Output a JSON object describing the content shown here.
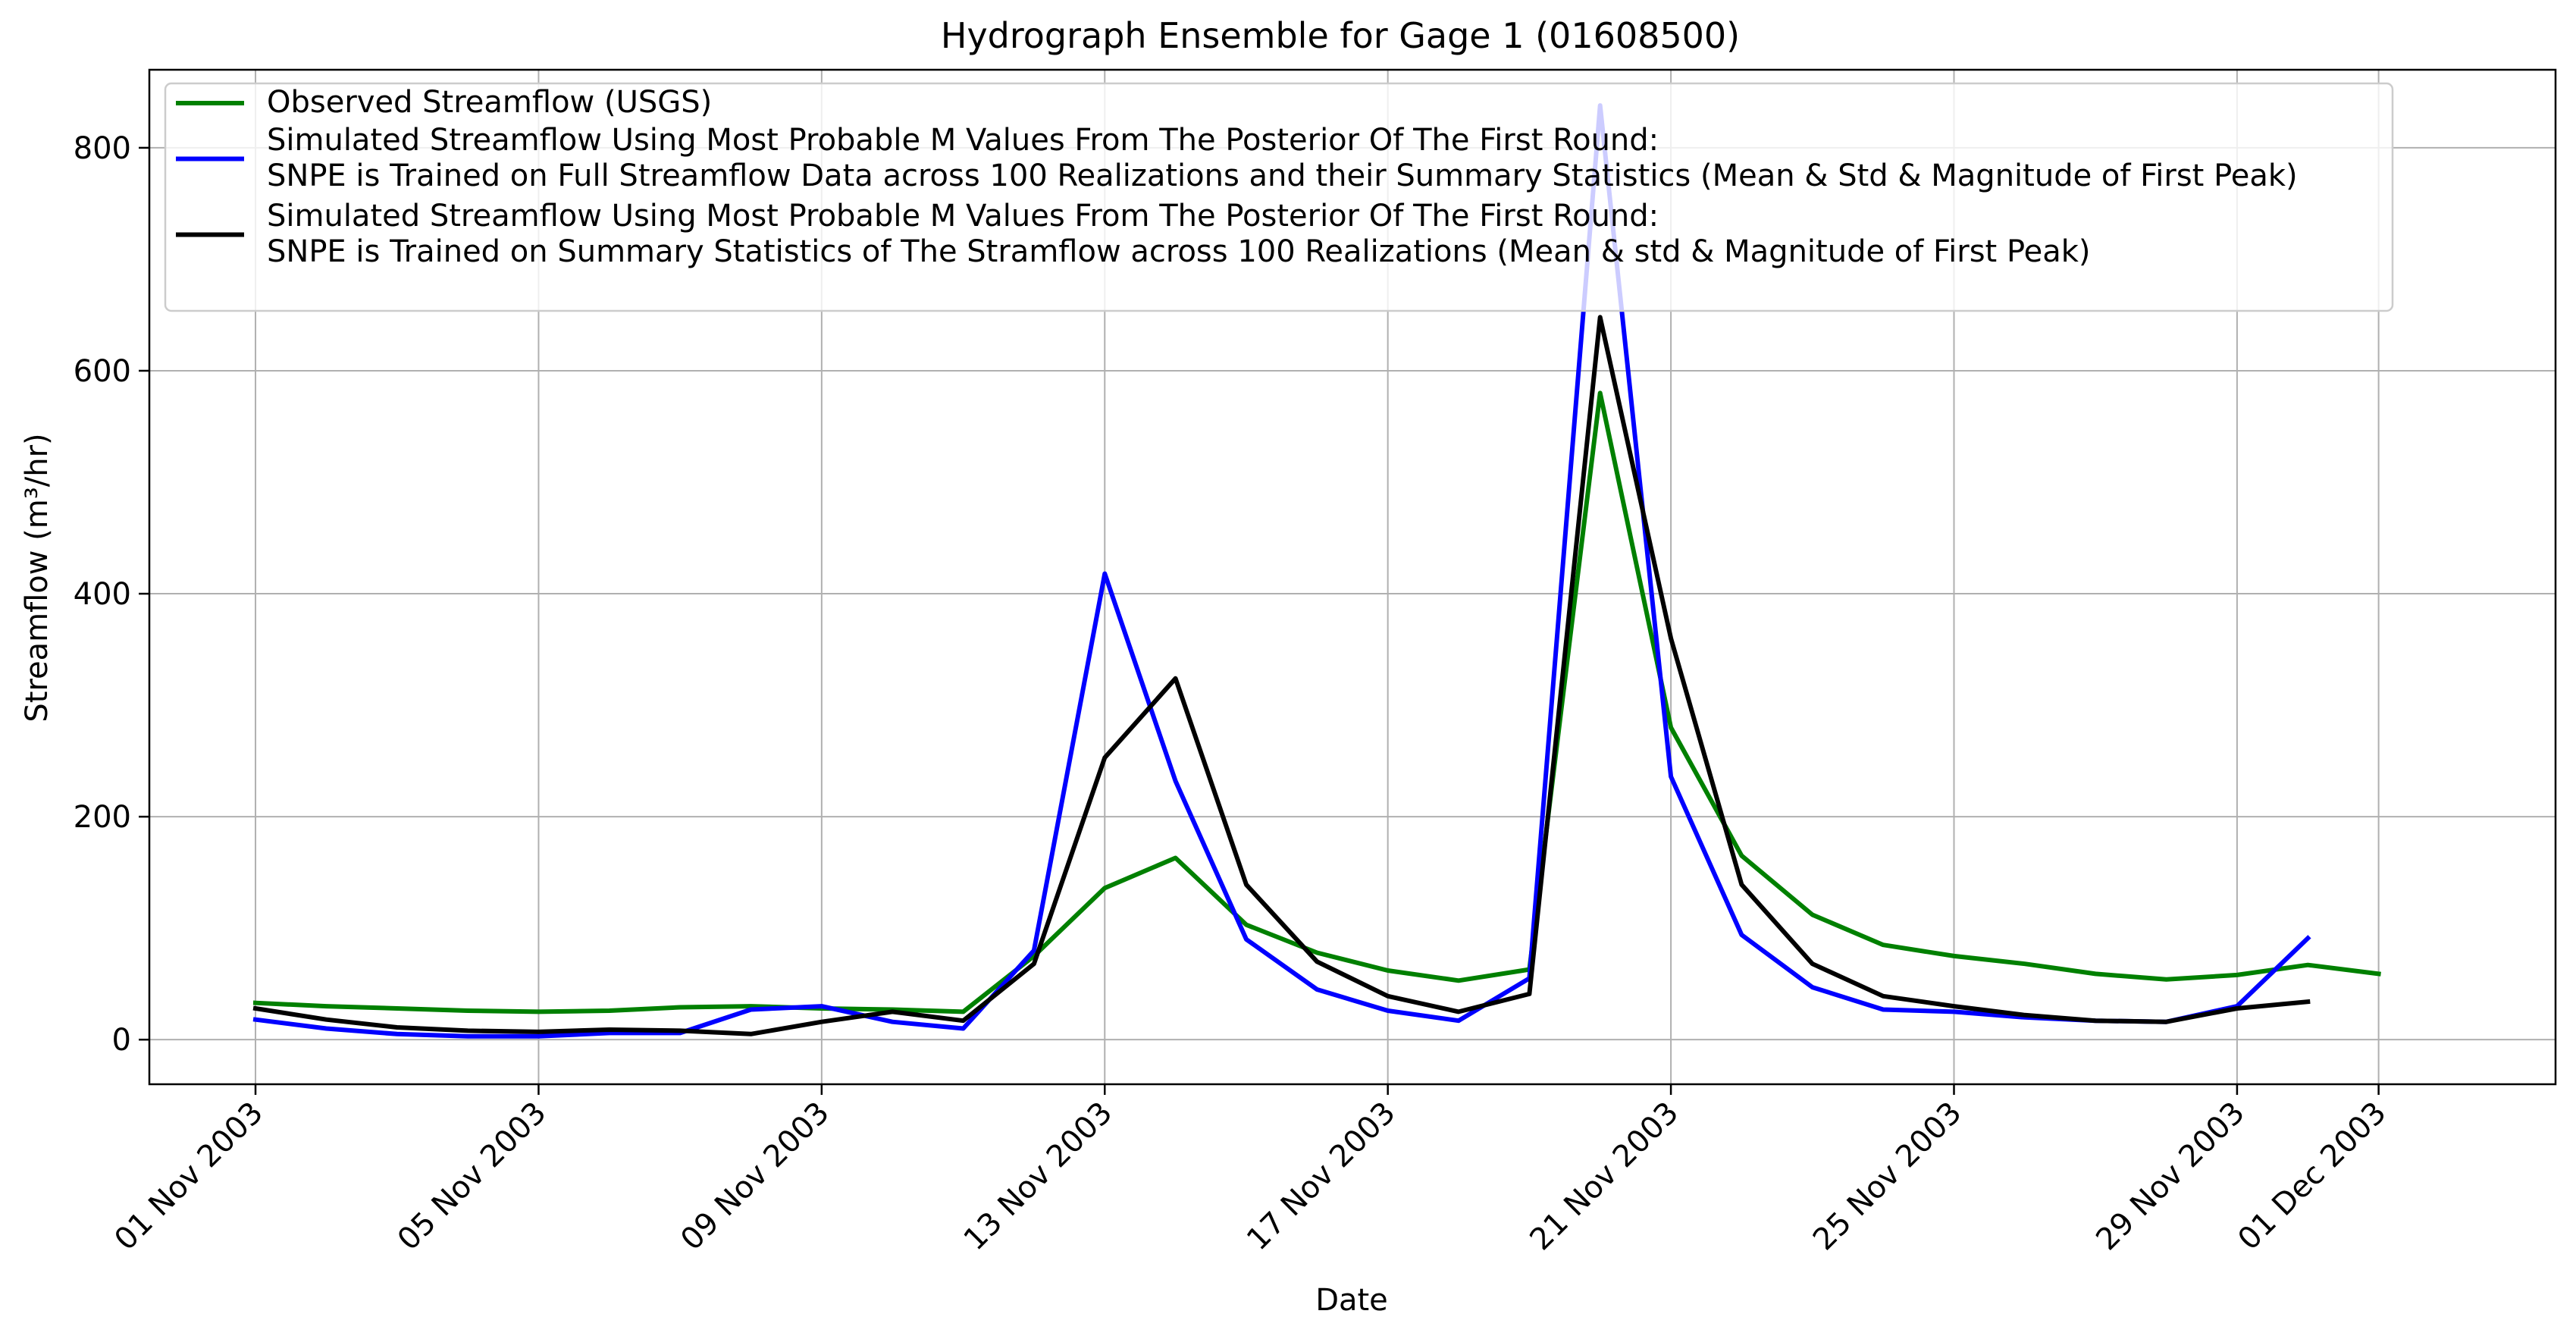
{
  "chart_data": {
    "type": "line",
    "title": "Hydrograph Ensemble for Gage 1 (01608500)",
    "xlabel": "Date",
    "ylabel": "Streamflow (m³/hr)",
    "x_range": [
      "2003-10-30T12:00",
      "2003-12-03T12:00"
    ],
    "ylim": [
      -40,
      870
    ],
    "grid": true,
    "legend_position": "top-left",
    "x_ticks": [
      {
        "date": "2003-11-01",
        "label": "01 Nov 2003"
      },
      {
        "date": "2003-11-05",
        "label": "05 Nov 2003"
      },
      {
        "date": "2003-11-09",
        "label": "09 Nov 2003"
      },
      {
        "date": "2003-11-13",
        "label": "13 Nov 2003"
      },
      {
        "date": "2003-11-17",
        "label": "17 Nov 2003"
      },
      {
        "date": "2003-11-21",
        "label": "21 Nov 2003"
      },
      {
        "date": "2003-11-25",
        "label": "25 Nov 2003"
      },
      {
        "date": "2003-11-29",
        "label": "29 Nov 2003"
      },
      {
        "date": "2003-12-01",
        "label": "01 Dec 2003"
      }
    ],
    "y_ticks": [
      0,
      200,
      400,
      600,
      800
    ],
    "series": [
      {
        "name": "Observed Streamflow (USGS)",
        "color": "#008000",
        "x": [
          "2003-11-01",
          "2003-11-02",
          "2003-11-03",
          "2003-11-04",
          "2003-11-05",
          "2003-11-06",
          "2003-11-07",
          "2003-11-08",
          "2003-11-09",
          "2003-11-10",
          "2003-11-11",
          "2003-11-12",
          "2003-11-13",
          "2003-11-14",
          "2003-11-15",
          "2003-11-16",
          "2003-11-17",
          "2003-11-18",
          "2003-11-19",
          "2003-11-20",
          "2003-11-21",
          "2003-11-22",
          "2003-11-23",
          "2003-11-24",
          "2003-11-25",
          "2003-11-26",
          "2003-11-27",
          "2003-11-28",
          "2003-11-29",
          "2003-11-30",
          "2003-12-01"
        ],
        "y": [
          33,
          30,
          28,
          26,
          25,
          26,
          29,
          30,
          28,
          27,
          25,
          75,
          136,
          163,
          103,
          78,
          62,
          53,
          63,
          580,
          280,
          165,
          112,
          85,
          75,
          68,
          59,
          54,
          58,
          67,
          59
        ]
      },
      {
        "name": "Simulated Streamflow Using Most Probable M Values From The Posterior Of The First Round:\nSNPE is Trained on Full Streamflow Data across 100 Realizations and their Summary Statistics (Mean & Std & Magnitude of First Peak)",
        "color": "#0000ff",
        "x": [
          "2003-11-01",
          "2003-11-02",
          "2003-11-03",
          "2003-11-04",
          "2003-11-05",
          "2003-11-06",
          "2003-11-07",
          "2003-11-08",
          "2003-11-09",
          "2003-11-10",
          "2003-11-11",
          "2003-11-12",
          "2003-11-13",
          "2003-11-14",
          "2003-11-15",
          "2003-11-16",
          "2003-11-17",
          "2003-11-18",
          "2003-11-19",
          "2003-11-20",
          "2003-11-21",
          "2003-11-22",
          "2003-11-23",
          "2003-11-24",
          "2003-11-25",
          "2003-11-26",
          "2003-11-27",
          "2003-11-28",
          "2003-11-29",
          "2003-11-30"
        ],
        "y": [
          18,
          10,
          5,
          3,
          3,
          6,
          6,
          27,
          30,
          16,
          10,
          80,
          418,
          232,
          90,
          45,
          26,
          17,
          55,
          838,
          236,
          94,
          47,
          27,
          25,
          20,
          17,
          16,
          30,
          91
        ]
      },
      {
        "name": "Simulated Streamflow Using Most Probable M Values From The Posterior Of The First Round:\nSNPE is Trained on Summary Statistics of The Stramflow across 100 Realizations (Mean & std & Magnitude of First Peak)",
        "color": "#000000",
        "x": [
          "2003-11-01",
          "2003-11-02",
          "2003-11-03",
          "2003-11-04",
          "2003-11-05",
          "2003-11-06",
          "2003-11-07",
          "2003-11-08",
          "2003-11-09",
          "2003-11-10",
          "2003-11-11",
          "2003-11-12",
          "2003-11-13",
          "2003-11-14",
          "2003-11-15",
          "2003-11-16",
          "2003-11-17",
          "2003-11-18",
          "2003-11-19",
          "2003-11-20",
          "2003-11-21",
          "2003-11-22",
          "2003-11-23",
          "2003-11-24",
          "2003-11-25",
          "2003-11-26",
          "2003-11-27",
          "2003-11-28",
          "2003-11-29",
          "2003-11-30"
        ],
        "y": [
          28,
          18,
          11,
          8,
          7,
          9,
          8,
          5,
          16,
          25,
          17,
          68,
          253,
          324,
          139,
          70,
          39,
          25,
          41,
          648,
          360,
          139,
          68,
          39,
          30,
          22,
          17,
          16,
          28,
          34
        ]
      }
    ]
  }
}
